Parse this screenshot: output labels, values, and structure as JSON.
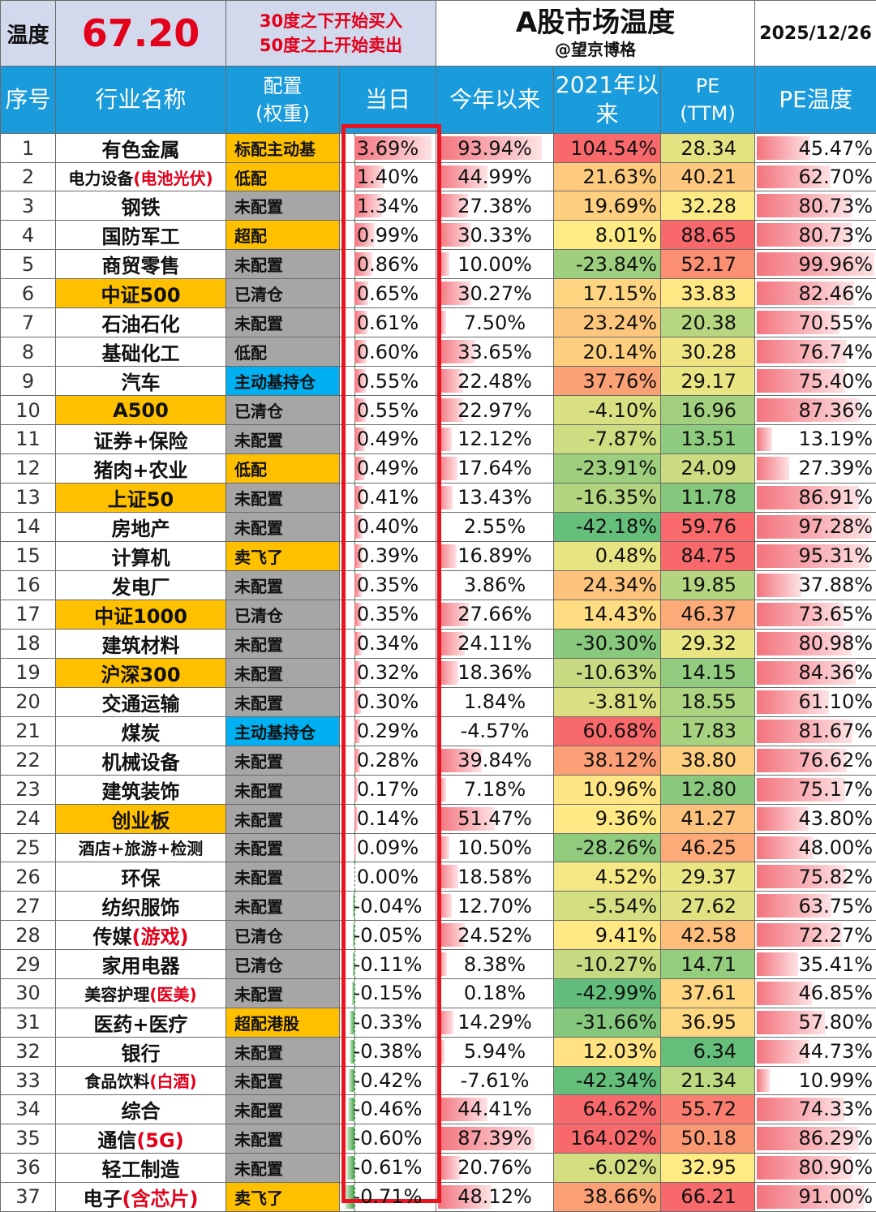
{
  "top": {
    "label": "温度",
    "value": "67.20",
    "rule_line1": "30度之下开始买入",
    "rule_line2": "50度之上开始卖出",
    "title": "A股市场温度",
    "subtitle": "@望京博格",
    "date": "2025/12/26"
  },
  "headers": {
    "idx": "序号",
    "name": "行业名称",
    "alloc_line1": "配置",
    "alloc_line2": "(权重)",
    "today": "当日",
    "ytd": "今年以来",
    "since2021_line1": "2021年以",
    "since2021_line2": "来",
    "pe_line1": "PE",
    "pe_line2": "(TTM)",
    "pe_temp": "PE温度"
  },
  "colors": {
    "header_bg": "#1a9bdc",
    "highlight_yellow": "#ffc000",
    "alloc_gray": "#a6a6a6",
    "alloc_blue": "#00b0f0",
    "accent_red": "#e3001b"
  },
  "rows": [
    {
      "idx": "1",
      "name": "有色金属",
      "name_red": "",
      "hl": false,
      "alloc": "标配主动基",
      "alloc_color": "yellow",
      "today": "3.69%",
      "today_v": 3.69,
      "ytd": "93.94%",
      "ytd_v": 93.94,
      "since2021": "104.54%",
      "since2021_v": 104.54,
      "pe": "28.34",
      "pe_v": 28.34,
      "pe_temp": "45.47%",
      "pe_temp_v": 45.47
    },
    {
      "idx": "2",
      "name": "电力设备",
      "name_red": "(电池光伏)",
      "hl": false,
      "alloc": "低配",
      "alloc_color": "yellow",
      "today": "1.40%",
      "today_v": 1.4,
      "ytd": "44.99%",
      "ytd_v": 44.99,
      "since2021": "21.63%",
      "since2021_v": 21.63,
      "pe": "40.21",
      "pe_v": 40.21,
      "pe_temp": "62.70%",
      "pe_temp_v": 62.7
    },
    {
      "idx": "3",
      "name": "钢铁",
      "name_red": "",
      "hl": false,
      "alloc": "未配置",
      "alloc_color": "gray",
      "today": "1.34%",
      "today_v": 1.34,
      "ytd": "27.38%",
      "ytd_v": 27.38,
      "since2021": "19.69%",
      "since2021_v": 19.69,
      "pe": "32.28",
      "pe_v": 32.28,
      "pe_temp": "80.73%",
      "pe_temp_v": 80.73
    },
    {
      "idx": "4",
      "name": "国防军工",
      "name_red": "",
      "hl": false,
      "alloc": "超配",
      "alloc_color": "yellow",
      "today": "0.99%",
      "today_v": 0.99,
      "ytd": "30.33%",
      "ytd_v": 30.33,
      "since2021": "8.01%",
      "since2021_v": 8.01,
      "pe": "88.65",
      "pe_v": 88.65,
      "pe_temp": "80.73%",
      "pe_temp_v": 80.73
    },
    {
      "idx": "5",
      "name": "商贸零售",
      "name_red": "",
      "hl": false,
      "alloc": "未配置",
      "alloc_color": "gray",
      "today": "0.86%",
      "today_v": 0.86,
      "ytd": "10.00%",
      "ytd_v": 10.0,
      "since2021": "-23.84%",
      "since2021_v": -23.84,
      "pe": "52.17",
      "pe_v": 52.17,
      "pe_temp": "99.96%",
      "pe_temp_v": 99.96
    },
    {
      "idx": "6",
      "name": "中证500",
      "name_red": "",
      "hl": true,
      "alloc": "已清仓",
      "alloc_color": "gray",
      "today": "0.65%",
      "today_v": 0.65,
      "ytd": "30.27%",
      "ytd_v": 30.27,
      "since2021": "17.15%",
      "since2021_v": 17.15,
      "pe": "33.83",
      "pe_v": 33.83,
      "pe_temp": "82.46%",
      "pe_temp_v": 82.46
    },
    {
      "idx": "7",
      "name": "石油石化",
      "name_red": "",
      "hl": false,
      "alloc": "未配置",
      "alloc_color": "gray",
      "today": "0.61%",
      "today_v": 0.61,
      "ytd": "7.50%",
      "ytd_v": 7.5,
      "since2021": "23.24%",
      "since2021_v": 23.24,
      "pe": "20.38",
      "pe_v": 20.38,
      "pe_temp": "70.55%",
      "pe_temp_v": 70.55
    },
    {
      "idx": "8",
      "name": "基础化工",
      "name_red": "",
      "hl": false,
      "alloc": "低配",
      "alloc_color": "gray",
      "today": "0.60%",
      "today_v": 0.6,
      "ytd": "33.65%",
      "ytd_v": 33.65,
      "since2021": "20.14%",
      "since2021_v": 20.14,
      "pe": "30.28",
      "pe_v": 30.28,
      "pe_temp": "76.74%",
      "pe_temp_v": 76.74
    },
    {
      "idx": "9",
      "name": "汽车",
      "name_red": "",
      "hl": false,
      "alloc": "主动基持仓",
      "alloc_color": "blue",
      "today": "0.55%",
      "today_v": 0.55,
      "ytd": "22.48%",
      "ytd_v": 22.48,
      "since2021": "37.76%",
      "since2021_v": 37.76,
      "pe": "29.17",
      "pe_v": 29.17,
      "pe_temp": "75.40%",
      "pe_temp_v": 75.4
    },
    {
      "idx": "10",
      "name": "A500",
      "name_red": "",
      "hl": true,
      "alloc": "已清仓",
      "alloc_color": "gray",
      "today": "0.55%",
      "today_v": 0.55,
      "ytd": "22.97%",
      "ytd_v": 22.97,
      "since2021": "-4.10%",
      "since2021_v": -4.1,
      "pe": "16.96",
      "pe_v": 16.96,
      "pe_temp": "87.36%",
      "pe_temp_v": 87.36
    },
    {
      "idx": "11",
      "name": "证券+保险",
      "name_red": "",
      "hl": false,
      "alloc": "未配置",
      "alloc_color": "gray",
      "today": "0.49%",
      "today_v": 0.49,
      "ytd": "12.12%",
      "ytd_v": 12.12,
      "since2021": "-7.87%",
      "since2021_v": -7.87,
      "pe": "13.51",
      "pe_v": 13.51,
      "pe_temp": "13.19%",
      "pe_temp_v": 13.19
    },
    {
      "idx": "12",
      "name": "猪肉+农业",
      "name_red": "",
      "hl": false,
      "alloc": "低配",
      "alloc_color": "yellow",
      "today": "0.49%",
      "today_v": 0.49,
      "ytd": "17.64%",
      "ytd_v": 17.64,
      "since2021": "-23.91%",
      "since2021_v": -23.91,
      "pe": "24.09",
      "pe_v": 24.09,
      "pe_temp": "27.39%",
      "pe_temp_v": 27.39
    },
    {
      "idx": "13",
      "name": "上证50",
      "name_red": "",
      "hl": true,
      "alloc": "未配置",
      "alloc_color": "gray",
      "today": "0.41%",
      "today_v": 0.41,
      "ytd": "13.43%",
      "ytd_v": 13.43,
      "since2021": "-16.35%",
      "since2021_v": -16.35,
      "pe": "11.78",
      "pe_v": 11.78,
      "pe_temp": "86.91%",
      "pe_temp_v": 86.91
    },
    {
      "idx": "14",
      "name": "房地产",
      "name_red": "",
      "hl": false,
      "alloc": "未配置",
      "alloc_color": "gray",
      "today": "0.40%",
      "today_v": 0.4,
      "ytd": "2.55%",
      "ytd_v": 2.55,
      "since2021": "-42.18%",
      "since2021_v": -42.18,
      "pe": "59.76",
      "pe_v": 59.76,
      "pe_temp": "97.28%",
      "pe_temp_v": 97.28
    },
    {
      "idx": "15",
      "name": "计算机",
      "name_red": "",
      "hl": false,
      "alloc": "卖飞了",
      "alloc_color": "yellow",
      "today": "0.39%",
      "today_v": 0.39,
      "ytd": "16.89%",
      "ytd_v": 16.89,
      "since2021": "0.48%",
      "since2021_v": 0.48,
      "pe": "84.75",
      "pe_v": 84.75,
      "pe_temp": "95.31%",
      "pe_temp_v": 95.31
    },
    {
      "idx": "16",
      "name": "发电厂",
      "name_red": "",
      "hl": false,
      "alloc": "未配置",
      "alloc_color": "gray",
      "today": "0.35%",
      "today_v": 0.35,
      "ytd": "3.86%",
      "ytd_v": 3.86,
      "since2021": "24.34%",
      "since2021_v": 24.34,
      "pe": "19.85",
      "pe_v": 19.85,
      "pe_temp": "37.88%",
      "pe_temp_v": 37.88
    },
    {
      "idx": "17",
      "name": "中证1000",
      "name_red": "",
      "hl": true,
      "alloc": "已清仓",
      "alloc_color": "gray",
      "today": "0.35%",
      "today_v": 0.35,
      "ytd": "27.66%",
      "ytd_v": 27.66,
      "since2021": "14.43%",
      "since2021_v": 14.43,
      "pe": "46.37",
      "pe_v": 46.37,
      "pe_temp": "73.65%",
      "pe_temp_v": 73.65
    },
    {
      "idx": "18",
      "name": "建筑材料",
      "name_red": "",
      "hl": false,
      "alloc": "未配置",
      "alloc_color": "gray",
      "today": "0.34%",
      "today_v": 0.34,
      "ytd": "24.11%",
      "ytd_v": 24.11,
      "since2021": "-30.30%",
      "since2021_v": -30.3,
      "pe": "29.32",
      "pe_v": 29.32,
      "pe_temp": "80.98%",
      "pe_temp_v": 80.98
    },
    {
      "idx": "19",
      "name": "沪深300",
      "name_red": "",
      "hl": true,
      "alloc": "未配置",
      "alloc_color": "gray",
      "today": "0.32%",
      "today_v": 0.32,
      "ytd": "18.36%",
      "ytd_v": 18.36,
      "since2021": "-10.63%",
      "since2021_v": -10.63,
      "pe": "14.15",
      "pe_v": 14.15,
      "pe_temp": "84.36%",
      "pe_temp_v": 84.36
    },
    {
      "idx": "20",
      "name": "交通运输",
      "name_red": "",
      "hl": false,
      "alloc": "未配置",
      "alloc_color": "gray",
      "today": "0.30%",
      "today_v": 0.3,
      "ytd": "1.84%",
      "ytd_v": 1.84,
      "since2021": "-3.81%",
      "since2021_v": -3.81,
      "pe": "18.55",
      "pe_v": 18.55,
      "pe_temp": "61.10%",
      "pe_temp_v": 61.1
    },
    {
      "idx": "21",
      "name": "煤炭",
      "name_red": "",
      "hl": false,
      "alloc": "主动基持仓",
      "alloc_color": "blue",
      "today": "0.29%",
      "today_v": 0.29,
      "ytd": "-4.57%",
      "ytd_v": -4.57,
      "since2021": "60.68%",
      "since2021_v": 60.68,
      "pe": "17.83",
      "pe_v": 17.83,
      "pe_temp": "81.67%",
      "pe_temp_v": 81.67
    },
    {
      "idx": "22",
      "name": "机械设备",
      "name_red": "",
      "hl": false,
      "alloc": "未配置",
      "alloc_color": "gray",
      "today": "0.28%",
      "today_v": 0.28,
      "ytd": "39.84%",
      "ytd_v": 39.84,
      "since2021": "38.12%",
      "since2021_v": 38.12,
      "pe": "38.80",
      "pe_v": 38.8,
      "pe_temp": "76.62%",
      "pe_temp_v": 76.62
    },
    {
      "idx": "23",
      "name": "建筑装饰",
      "name_red": "",
      "hl": false,
      "alloc": "未配置",
      "alloc_color": "gray",
      "today": "0.17%",
      "today_v": 0.17,
      "ytd": "7.18%",
      "ytd_v": 7.18,
      "since2021": "10.96%",
      "since2021_v": 10.96,
      "pe": "12.80",
      "pe_v": 12.8,
      "pe_temp": "75.17%",
      "pe_temp_v": 75.17
    },
    {
      "idx": "24",
      "name": "创业板",
      "name_red": "",
      "hl": true,
      "alloc": "未配置",
      "alloc_color": "gray",
      "today": "0.14%",
      "today_v": 0.14,
      "ytd": "51.47%",
      "ytd_v": 51.47,
      "since2021": "9.36%",
      "since2021_v": 9.36,
      "pe": "41.27",
      "pe_v": 41.27,
      "pe_temp": "43.80%",
      "pe_temp_v": 43.8
    },
    {
      "idx": "25",
      "name": "酒店+旅游+检测",
      "name_red": "",
      "hl": false,
      "alloc": "未配置",
      "alloc_color": "gray",
      "today": "0.09%",
      "today_v": 0.09,
      "ytd": "10.50%",
      "ytd_v": 10.5,
      "since2021": "-28.26%",
      "since2021_v": -28.26,
      "pe": "46.25",
      "pe_v": 46.25,
      "pe_temp": "48.00%",
      "pe_temp_v": 48.0
    },
    {
      "idx": "26",
      "name": "环保",
      "name_red": "",
      "hl": false,
      "alloc": "未配置",
      "alloc_color": "gray",
      "today": "0.00%",
      "today_v": 0.0,
      "ytd": "18.58%",
      "ytd_v": 18.58,
      "since2021": "4.52%",
      "since2021_v": 4.52,
      "pe": "29.37",
      "pe_v": 29.37,
      "pe_temp": "75.82%",
      "pe_temp_v": 75.82
    },
    {
      "idx": "27",
      "name": "纺织服饰",
      "name_red": "",
      "hl": false,
      "alloc": "未配置",
      "alloc_color": "gray",
      "today": "-0.04%",
      "today_v": -0.04,
      "ytd": "12.70%",
      "ytd_v": 12.7,
      "since2021": "-5.54%",
      "since2021_v": -5.54,
      "pe": "27.62",
      "pe_v": 27.62,
      "pe_temp": "63.75%",
      "pe_temp_v": 63.75
    },
    {
      "idx": "28",
      "name": "传媒",
      "name_red": "(游戏)",
      "hl": false,
      "alloc": "已清仓",
      "alloc_color": "gray",
      "today": "-0.05%",
      "today_v": -0.05,
      "ytd": "24.52%",
      "ytd_v": 24.52,
      "since2021": "9.41%",
      "since2021_v": 9.41,
      "pe": "42.58",
      "pe_v": 42.58,
      "pe_temp": "72.27%",
      "pe_temp_v": 72.27
    },
    {
      "idx": "29",
      "name": "家用电器",
      "name_red": "",
      "hl": false,
      "alloc": "已清仓",
      "alloc_color": "gray",
      "today": "-0.11%",
      "today_v": -0.11,
      "ytd": "8.38%",
      "ytd_v": 8.38,
      "since2021": "-10.27%",
      "since2021_v": -10.27,
      "pe": "14.71",
      "pe_v": 14.71,
      "pe_temp": "35.41%",
      "pe_temp_v": 35.41
    },
    {
      "idx": "30",
      "name": "美容护理",
      "name_red": "(医美)",
      "hl": false,
      "alloc": "未配置",
      "alloc_color": "gray",
      "today": "-0.15%",
      "today_v": -0.15,
      "ytd": "0.18%",
      "ytd_v": 0.18,
      "since2021": "-42.99%",
      "since2021_v": -42.99,
      "pe": "37.61",
      "pe_v": 37.61,
      "pe_temp": "46.85%",
      "pe_temp_v": 46.85
    },
    {
      "idx": "31",
      "name": "医药+医疗",
      "name_red": "",
      "hl": false,
      "alloc": "超配港股",
      "alloc_color": "yellow",
      "today": "-0.33%",
      "today_v": -0.33,
      "ytd": "14.29%",
      "ytd_v": 14.29,
      "since2021": "-31.66%",
      "since2021_v": -31.66,
      "pe": "36.95",
      "pe_v": 36.95,
      "pe_temp": "57.80%",
      "pe_temp_v": 57.8
    },
    {
      "idx": "32",
      "name": "银行",
      "name_red": "",
      "hl": false,
      "alloc": "未配置",
      "alloc_color": "gray",
      "today": "-0.38%",
      "today_v": -0.38,
      "ytd": "5.94%",
      "ytd_v": 5.94,
      "since2021": "12.03%",
      "since2021_v": 12.03,
      "pe": "6.34",
      "pe_v": 6.34,
      "pe_temp": "44.73%",
      "pe_temp_v": 44.73
    },
    {
      "idx": "33",
      "name": "食品饮料",
      "name_red": "(白酒)",
      "hl": false,
      "alloc": "未配置",
      "alloc_color": "gray",
      "today": "-0.42%",
      "today_v": -0.42,
      "ytd": "-7.61%",
      "ytd_v": -7.61,
      "since2021": "-42.34%",
      "since2021_v": -42.34,
      "pe": "21.34",
      "pe_v": 21.34,
      "pe_temp": "10.99%",
      "pe_temp_v": 10.99
    },
    {
      "idx": "34",
      "name": "综合",
      "name_red": "",
      "hl": false,
      "alloc": "未配置",
      "alloc_color": "gray",
      "today": "-0.46%",
      "today_v": -0.46,
      "ytd": "44.41%",
      "ytd_v": 44.41,
      "since2021": "64.62%",
      "since2021_v": 64.62,
      "pe": "55.72",
      "pe_v": 55.72,
      "pe_temp": "74.33%",
      "pe_temp_v": 74.33
    },
    {
      "idx": "35",
      "name": "通信",
      "name_red": "(5G)",
      "hl": false,
      "alloc": "未配置",
      "alloc_color": "gray",
      "today": "-0.60%",
      "today_v": -0.6,
      "ytd": "87.39%",
      "ytd_v": 87.39,
      "since2021": "164.02%",
      "since2021_v": 164.02,
      "pe": "50.18",
      "pe_v": 50.18,
      "pe_temp": "86.29%",
      "pe_temp_v": 86.29
    },
    {
      "idx": "36",
      "name": "轻工制造",
      "name_red": "",
      "hl": false,
      "alloc": "未配置",
      "alloc_color": "gray",
      "today": "-0.61%",
      "today_v": -0.61,
      "ytd": "20.76%",
      "ytd_v": 20.76,
      "since2021": "-6.02%",
      "since2021_v": -6.02,
      "pe": "32.95",
      "pe_v": 32.95,
      "pe_temp": "80.90%",
      "pe_temp_v": 80.9
    },
    {
      "idx": "37",
      "name": "电子",
      "name_red": "(含芯片)",
      "hl": false,
      "alloc": "卖飞了",
      "alloc_color": "yellow",
      "today": "-0.71%",
      "today_v": -0.71,
      "ytd": "48.12%",
      "ytd_v": 48.12,
      "since2021": "38.66%",
      "since2021_v": 38.66,
      "pe": "66.21",
      "pe_v": 66.21,
      "pe_temp": "91.00%",
      "pe_temp_v": 91.0
    }
  ]
}
